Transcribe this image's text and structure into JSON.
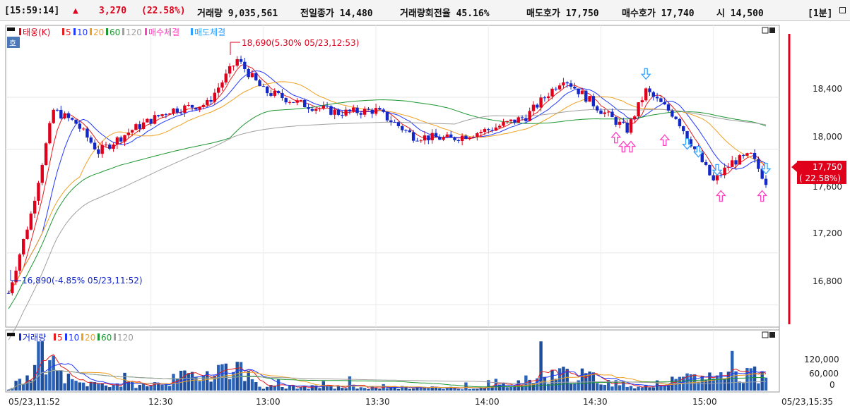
{
  "status_bar": {
    "time": "[15:59:14]",
    "arrow": "▲",
    "change": "3,270",
    "change_pct": "(22.58%)",
    "volume": "거래량 9,035,561",
    "prev_close": "전일종가 14,480",
    "turnover": "거래량회전율 45.16%",
    "ask": "매도호가 17,750",
    "bid": "매수호가 17,740",
    "open": "시 14,500",
    "period": "[1분]",
    "period_icon": "window-restore-icon"
  },
  "price_panel": {
    "legend": {
      "main": "태웅(K)",
      "ma": [
        "5",
        "10",
        "20",
        "60",
        "120"
      ],
      "buy": "매수체결",
      "sell": "매도체결"
    },
    "ho_button": "호",
    "high_annotation": "18,690(5.30% 05/23,12:53)",
    "low_annotation": "16,890(-4.85% 05/23,11:52)",
    "y_ticks": [
      "18,400",
      "18,000",
      "17,200",
      "16,800"
    ],
    "y_tick_values": [
      18400,
      18000,
      17200,
      16800
    ],
    "current_price": "17,750",
    "current_pct": "( 22.58%)",
    "obscured_tick": "17,600"
  },
  "volume_panel": {
    "legend": {
      "main": "거래량",
      "ma": [
        "5",
        "10",
        "20",
        "60",
        "120"
      ]
    },
    "y_ticks": [
      "120,000",
      "60,000",
      "0"
    ],
    "y_tick_values": [
      120000,
      60000,
      0
    ]
  },
  "x_axis": {
    "labels": [
      "05/23,11:52",
      "12:30",
      "13:00",
      "13:30",
      "14:00",
      "14:30",
      "15:00",
      "05/23,15:35"
    ]
  },
  "colors": {
    "up": "#e0001b",
    "down": "#1428c8",
    "ma5": "#e81c1c",
    "ma10": "#2038ff",
    "ma20": "#f0a020",
    "ma60": "#1e9632",
    "ma120": "#a0a0a0",
    "buy_marker": "#ff40c0",
    "sell_marker": "#30a0ff"
  },
  "chart_data": {
    "type": "candlestick",
    "interval": "1min",
    "y_range": [
      16650,
      18900
    ],
    "series_names": [
      "5",
      "10",
      "20",
      "60",
      "120"
    ],
    "price_keypoints": [
      {
        "t": "11:52",
        "price": 16890
      },
      {
        "t": "11:58",
        "price": 17500
      },
      {
        "t": "12:04",
        "price": 18300
      },
      {
        "t": "12:10",
        "price": 18200
      },
      {
        "t": "12:16",
        "price": 17980
      },
      {
        "t": "12:25",
        "price": 18150
      },
      {
        "t": "12:35",
        "price": 18300
      },
      {
        "t": "12:45",
        "price": 18350
      },
      {
        "t": "12:53",
        "price": 18690
      },
      {
        "t": "13:00",
        "price": 18450
      },
      {
        "t": "13:10",
        "price": 18350
      },
      {
        "t": "13:20",
        "price": 18280
      },
      {
        "t": "13:30",
        "price": 18300
      },
      {
        "t": "13:40",
        "price": 18100
      },
      {
        "t": "13:50",
        "price": 18080
      },
      {
        "t": "14:00",
        "price": 18150
      },
      {
        "t": "14:10",
        "price": 18250
      },
      {
        "t": "14:20",
        "price": 18550
      },
      {
        "t": "14:30",
        "price": 18300
      },
      {
        "t": "14:37",
        "price": 18150
      },
      {
        "t": "14:42",
        "price": 18450
      },
      {
        "t": "14:50",
        "price": 18250
      },
      {
        "t": "14:55",
        "price": 18000
      },
      {
        "t": "15:00",
        "price": 17750
      },
      {
        "t": "15:05",
        "price": 17900
      },
      {
        "t": "15:10",
        "price": 17950
      },
      {
        "t": "15:14",
        "price": 17750
      }
    ],
    "volume_keypoints": [
      {
        "t": "11:52",
        "volume": 8000
      },
      {
        "t": "11:56",
        "volume": 45000
      },
      {
        "t": "11:58",
        "volume": 90000
      },
      {
        "t": "12:00",
        "volume": 150000
      },
      {
        "t": "12:03",
        "volume": 110000
      },
      {
        "t": "12:06",
        "volume": 60000
      },
      {
        "t": "12:10",
        "volume": 30000
      },
      {
        "t": "12:20",
        "volume": 25000
      },
      {
        "t": "12:30",
        "volume": 22000
      },
      {
        "t": "12:52",
        "volume": 100000
      },
      {
        "t": "13:00",
        "volume": 15000
      },
      {
        "t": "13:30",
        "volume": 12000
      },
      {
        "t": "14:00",
        "volume": 10000
      },
      {
        "t": "14:20",
        "volume": 70000
      },
      {
        "t": "14:40",
        "volume": 15000
      },
      {
        "t": "15:00",
        "volume": 60000
      },
      {
        "t": "15:14",
        "volume": 65000
      }
    ]
  }
}
